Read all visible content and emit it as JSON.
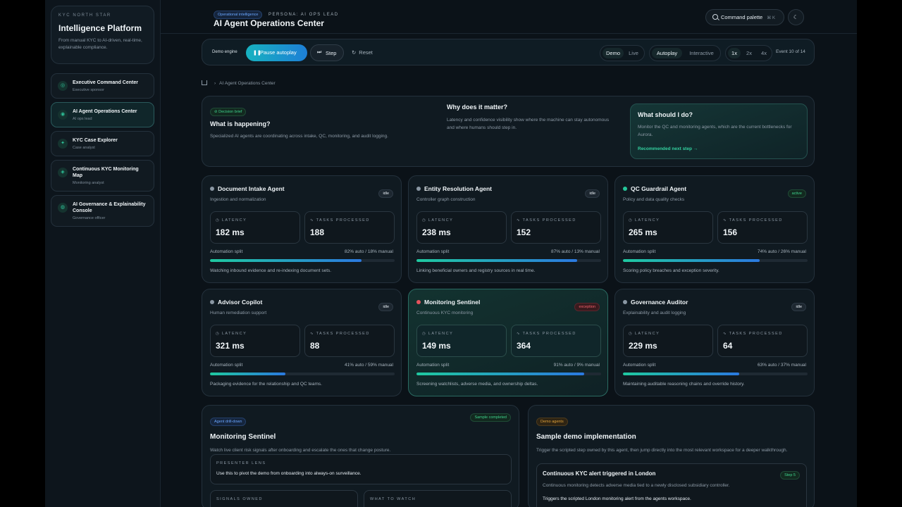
{
  "brand": {
    "eyebrow": "KYC NORTH STAR",
    "title": "Intelligence Platform",
    "description": "From manual KYC to AI-driven, real-time, explainable compliance."
  },
  "nav": [
    {
      "label": "Executive Command Center",
      "sub": "Executive sponsor",
      "icon": "target-icon"
    },
    {
      "label": "AI Agent Operations Center",
      "sub": "AI ops lead",
      "icon": "bot-icon"
    },
    {
      "label": "KYC Case Explorer",
      "sub": "Case analyst",
      "icon": "search-icon"
    },
    {
      "label": "Continuous KYC Monitoring Map",
      "sub": "Monitoring analyst",
      "icon": "globe-icon"
    },
    {
      "label": "AI Governance & Explainability Console",
      "sub": "Governance officer",
      "icon": "shield-icon"
    }
  ],
  "header": {
    "tag": "Operational intelligence",
    "persona": "PERSONA: AI OPS LEAD",
    "title": "AI Agent Operations Center",
    "command_label": "Command palette",
    "command_kbd": "⌘ K"
  },
  "engine": {
    "label": "Demo engine",
    "pause_label": "Pause autoplay",
    "step_label": "Step",
    "reset_label": "Reset",
    "mode": [
      "Demo",
      "Live"
    ],
    "play": [
      "Autoplay",
      "Interactive"
    ],
    "speed": [
      "1x",
      "2x",
      "4x"
    ],
    "event": "Event 10 of 14"
  },
  "breadcrumb": {
    "current": "AI Agent Operations Center"
  },
  "brief": {
    "tag": "Decision brief",
    "q1": "What is happening?",
    "t1": "Specialized AI agents are coordinating across intake, QC, monitoring, and audit logging.",
    "q2": "Why does it matter?",
    "t2": "Latency and confidence visibility show where the machine can stay autonomous and where humans should step in.",
    "q3": "What should I do?",
    "t3": "Monitor the QC and monitoring agents, which are the current bottlenecks for Aurora.",
    "next": "Recommended next step"
  },
  "metric_labels": {
    "latency": "LATENCY",
    "tasks": "TASKS PROCESSED",
    "split": "Automation split"
  },
  "agents": [
    {
      "name": "Document Intake Agent",
      "sub": "Ingestion and normalization",
      "status": "idle",
      "latency": "182 ms",
      "tasks": "188",
      "split": "82% auto / 18% manual",
      "auto": 82,
      "desc": "Watching inbound evidence and re-indexing document sets.",
      "dot": "#8a97a3"
    },
    {
      "name": "Entity Resolution Agent",
      "sub": "Controller graph construction",
      "status": "idle",
      "latency": "238 ms",
      "tasks": "152",
      "split": "87% auto / 13% manual",
      "auto": 87,
      "desc": "Linking beneficial owners and registry sources in real time.",
      "dot": "#8a97a3"
    },
    {
      "name": "QC Guardrail Agent",
      "sub": "Policy and data quality checks",
      "status": "active",
      "latency": "265 ms",
      "tasks": "156",
      "split": "74% auto / 26% manual",
      "auto": 74,
      "desc": "Scoring policy breaches and exception severity.",
      "dot": "#25c79a"
    },
    {
      "name": "Advisor Copilot",
      "sub": "Human remediation support",
      "status": "idle",
      "latency": "321 ms",
      "tasks": "88",
      "split": "41% auto / 59% manual",
      "auto": 41,
      "desc": "Packaging evidence for the relationship and QC teams.",
      "dot": "#8a97a3"
    },
    {
      "name": "Monitoring Sentinel",
      "sub": "Continuous KYC monitoring",
      "status": "exception",
      "latency": "149 ms",
      "tasks": "364",
      "split": "91% auto / 9% manual",
      "auto": 91,
      "desc": "Screening watchlists, adverse media, and ownership deltas.",
      "dot": "#e5525c"
    },
    {
      "name": "Governance Auditor",
      "sub": "Explainability and audit logging",
      "status": "idle",
      "latency": "229 ms",
      "tasks": "64",
      "split": "63% auto / 37% manual",
      "auto": 63,
      "desc": "Maintaining auditable reasoning chains and override history.",
      "dot": "#8a97a3"
    }
  ],
  "drilldown": {
    "tag": "Agent drill-down",
    "status": "Sample completed",
    "title": "Monitoring Sentinel",
    "text": "Watch live client risk signals after onboarding and escalate the ones that change posture.",
    "presenter_label": "PRESENTER LENS",
    "presenter_text": "Use this to pivot the demo from onboarding into always-on surveillance.",
    "signals_label": "SIGNALS OWNED",
    "watch_label": "WHAT TO WATCH"
  },
  "sample": {
    "tag": "Demo agents",
    "title": "Sample demo implementation",
    "text": "Trigger the scripted step owned by this agent, then jump directly into the most relevant workspace for a deeper walkthrough.",
    "alert_title": "Continuous KYC alert triggered in London",
    "alert_step": "Step 5",
    "alert_desc": "Continuous monitoring detects adverse media tied to a newly disclosed subsidiary controller.",
    "alert_action": "Triggers the scripted London monitoring alert from the agents workspace."
  }
}
